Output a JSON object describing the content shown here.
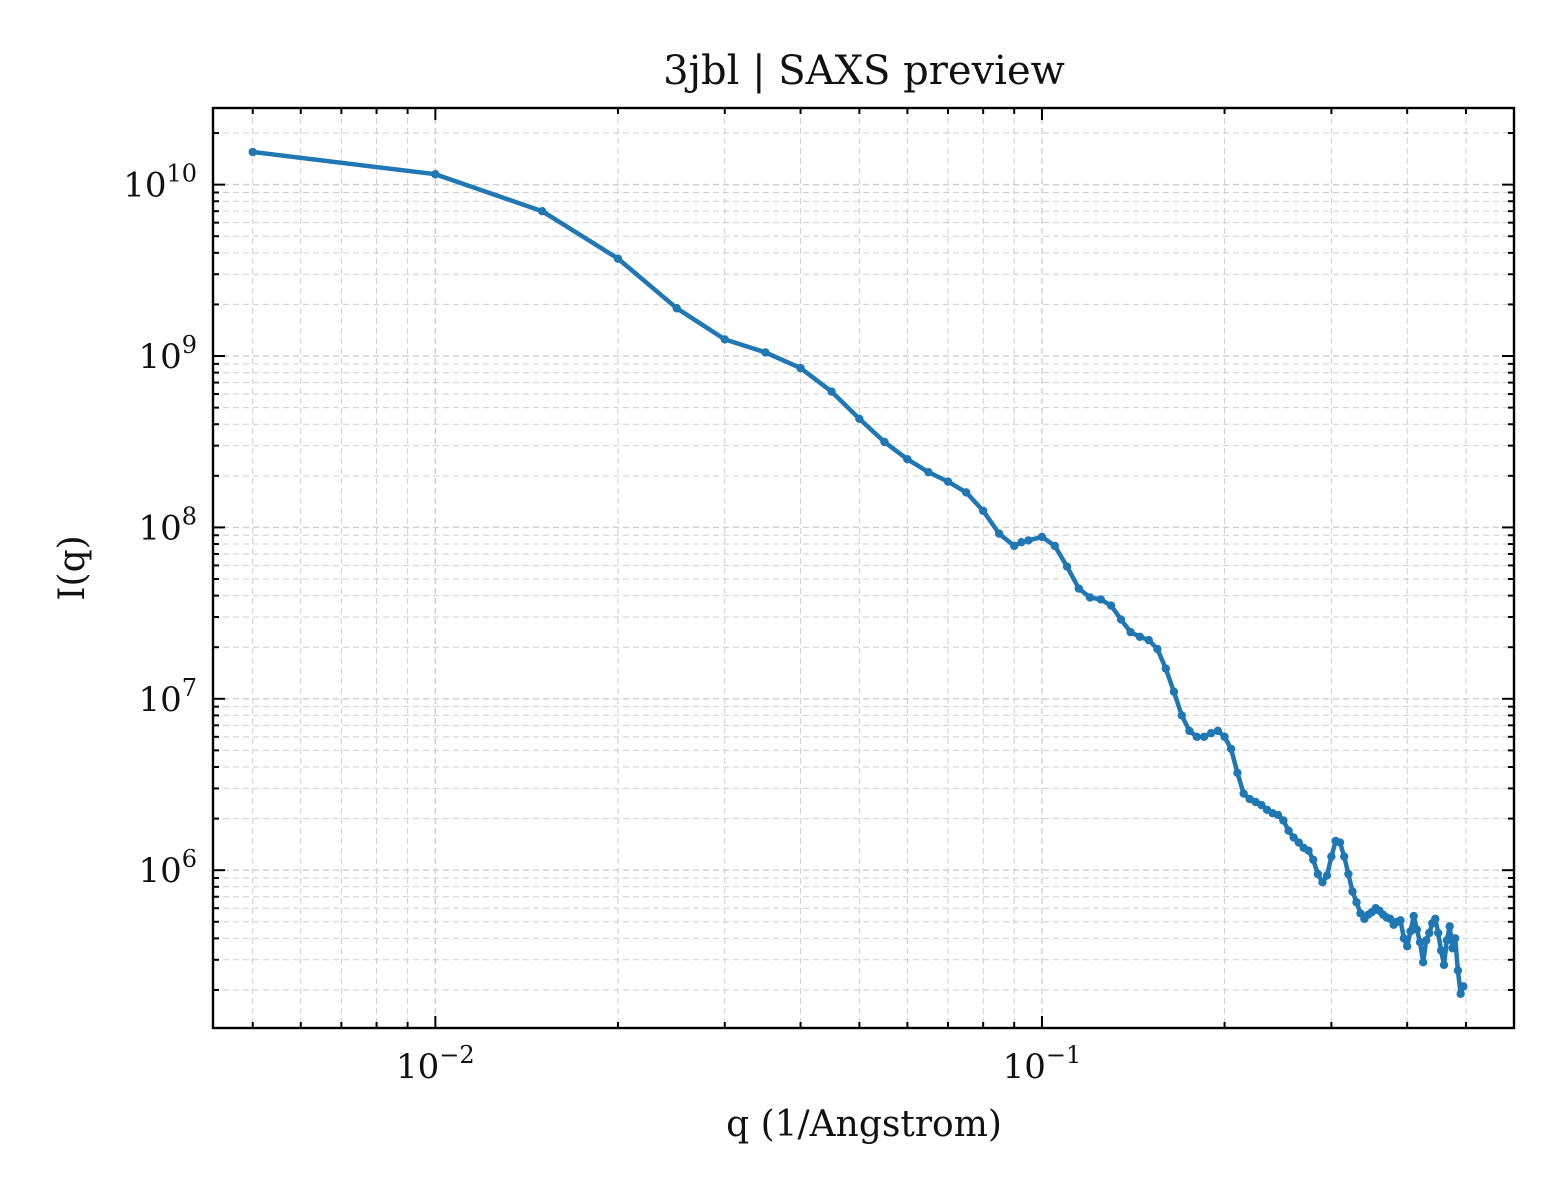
{
  "chart_data": {
    "type": "line",
    "title": "3jbl | SAXS preview",
    "xlabel": "q (1/Angstrom)",
    "ylabel": "I(q)",
    "xscale": "log",
    "yscale": "log",
    "xlim": [
      0.0043,
      0.6
    ],
    "ylim": [
      120000.0,
      28000000000.0
    ],
    "grid": true,
    "color": "#1f77b4",
    "x_ticks": [
      {
        "base": "10",
        "exp": "−2",
        "value": 0.01
      },
      {
        "base": "10",
        "exp": "−1",
        "value": 0.1
      }
    ],
    "y_ticks": [
      {
        "base": "10",
        "exp": "6",
        "value": 1000000.0
      },
      {
        "base": "10",
        "exp": "7",
        "value": 10000000.0
      },
      {
        "base": "10",
        "exp": "8",
        "value": 100000000.0
      },
      {
        "base": "10",
        "exp": "9",
        "value": 1000000000.0
      },
      {
        "base": "10",
        "exp": "10",
        "value": 10000000000.0
      }
    ],
    "series": [
      {
        "x": [
          0.005,
          0.01,
          0.015,
          0.02,
          0.025,
          0.03,
          0.035,
          0.04,
          0.045,
          0.05,
          0.055,
          0.06,
          0.065,
          0.07,
          0.075,
          0.08,
          0.085,
          0.09,
          0.0925,
          0.095,
          0.1,
          0.105,
          0.11,
          0.115,
          0.12,
          0.125,
          0.13,
          0.135,
          0.14,
          0.145,
          0.15,
          0.155,
          0.16,
          0.165,
          0.17,
          0.175,
          0.18,
          0.185,
          0.19,
          0.195,
          0.2,
          0.205,
          0.21,
          0.215,
          0.22,
          0.225,
          0.23,
          0.235,
          0.24,
          0.245,
          0.25,
          0.255,
          0.26,
          0.265,
          0.27,
          0.275,
          0.28,
          0.285,
          0.29,
          0.295,
          0.3,
          0.305,
          0.31,
          0.315,
          0.32,
          0.325,
          0.33,
          0.335,
          0.34,
          0.345,
          0.35,
          0.355,
          0.36,
          0.365,
          0.37,
          0.375,
          0.38,
          0.385,
          0.39,
          0.395,
          0.4,
          0.405,
          0.41,
          0.415,
          0.42,
          0.425,
          0.43,
          0.435,
          0.44,
          0.445,
          0.45,
          0.455,
          0.46,
          0.465,
          0.47,
          0.475,
          0.48,
          0.485,
          0.49,
          0.495
        ],
        "y": [
          15500000000.0,
          11500000000.0,
          7000000000.0,
          3700000000.0,
          1900000000.0,
          1250000000.0,
          1050000000.0,
          850000000.0,
          620000000.0,
          430000000.0,
          315000000.0,
          250000000.0,
          210000000.0,
          185000000.0,
          160000000.0,
          125000000.0,
          92000000.0,
          78000000.0,
          82000000.0,
          84000000.0,
          88000000.0,
          78000000.0,
          59000000.0,
          44000000.0,
          39000000.0,
          38000000.0,
          35000000.0,
          29000000.0,
          24500000.0,
          23000000.0,
          22000000.0,
          19500000.0,
          15000000.0,
          11000000.0,
          8000000.0,
          6500000.0,
          6000000.0,
          6000000.0,
          6300000.0,
          6500000.0,
          6000000.0,
          5100000.0,
          3700000.0,
          2800000.0,
          2600000.0,
          2500000.0,
          2400000.0,
          2250000.0,
          2150000.0,
          2100000.0,
          1950000.0,
          1700000.0,
          1550000.0,
          1450000.0,
          1350000.0,
          1300000.0,
          1150000.0,
          950000.0,
          850000.0,
          930000.0,
          1200000.0,
          1480000.0,
          1450000.0,
          1200000.0,
          950000.0,
          750000.0,
          650000.0,
          560000.0,
          520000.0,
          550000.0,
          570000.0,
          600000.0,
          580000.0,
          550000.0,
          530000.0,
          520000.0,
          480000.0,
          500000.0,
          510000.0,
          400000.0,
          360000.0,
          440000.0,
          540000.0,
          450000.0,
          380000.0,
          290000.0,
          390000.0,
          430000.0,
          490000.0,
          520000.0,
          430000.0,
          340000.0,
          280000.0,
          390000.0,
          470000.0,
          350000.0,
          400000.0,
          260000.0,
          190000.0,
          210000.0
        ]
      }
    ]
  }
}
